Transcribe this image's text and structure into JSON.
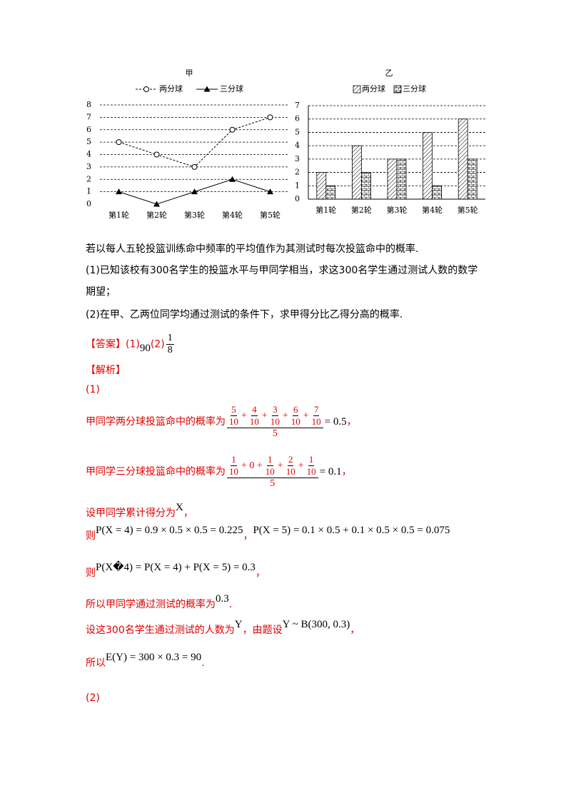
{
  "chart_data": [
    {
      "type": "line",
      "title": "甲",
      "categories": [
        "第1轮",
        "第2轮",
        "第3轮",
        "第4轮",
        "第5轮"
      ],
      "series": [
        {
          "name": "两分球",
          "color": "#000000",
          "marker": "circle",
          "dashed": true,
          "values": [
            5,
            4,
            3,
            6,
            7
          ]
        },
        {
          "name": "三分球",
          "color": "#000000",
          "marker": "triangle",
          "dashed": false,
          "values": [
            1,
            0,
            1,
            2,
            1
          ]
        }
      ],
      "ylim": [
        0,
        8
      ],
      "yticks": [
        0,
        1,
        2,
        3,
        4,
        5,
        6,
        7,
        8
      ],
      "grid": true
    },
    {
      "type": "bar",
      "title": "乙",
      "categories": [
        "第1轮",
        "第2轮",
        "第3轮",
        "第4轮",
        "第5轮"
      ],
      "series": [
        {
          "name": "两分球",
          "color": "#000000",
          "pattern": "hatch",
          "values": [
            2,
            4,
            3,
            5,
            6
          ]
        },
        {
          "name": "三分球",
          "color": "#000000",
          "pattern": "brick",
          "values": [
            1,
            2,
            3,
            1,
            3
          ]
        }
      ],
      "ylim": [
        0,
        7
      ],
      "yticks": [
        0,
        1,
        2,
        3,
        4,
        5,
        6,
        7
      ],
      "grid": true
    }
  ],
  "question": [
    "若以每人五轮投篮训练命中频率的平均值作为其测试时每次投篮命中的概率.",
    "(1)已知该校有300名学生的投篮水平与甲同学相当，求这300名学生通过测试人数的数学期望；",
    "(2)在甲、乙两位同学均通过测试的条件下，求甲得分比乙得分高的概率."
  ],
  "answer": {
    "label": "【答案】",
    "part1": "(1)",
    "value1": "90",
    "part2": "(2)",
    "num2": "1",
    "den2": "8"
  },
  "analysis": {
    "label": "【解析】",
    "part1": "(1)",
    "line1": {
      "text": "甲同学两分球投篮命中的概率为",
      "num": [
        {
          "n": "5",
          "d": "10"
        },
        "+",
        {
          "n": "4",
          "d": "10"
        },
        "+",
        {
          "n": "3",
          "d": "10"
        },
        "+",
        {
          "n": "6",
          "d": "10"
        },
        "+",
        {
          "n": "7",
          "d": "10"
        }
      ],
      "den": "5",
      "result": "= 0.5",
      "end": "，"
    },
    "line2": {
      "text": "甲同学三分球投篮命中的概率为",
      "num": [
        {
          "n": "1",
          "d": "10"
        },
        "+ 0 +",
        {
          "n": "1",
          "d": "10"
        },
        "+",
        {
          "n": "2",
          "d": "10"
        },
        "+",
        {
          "n": "1",
          "d": "10"
        }
      ],
      "den": "5",
      "result": "= 0.1",
      "end": "，"
    },
    "line3": [
      "设甲同学累计得分为",
      "X",
      "，"
    ],
    "line4": [
      "则",
      "P(X = 4) = 0.9 × 0.5 × 0.5 = 0.225",
      "，",
      "P(X = 5) = 0.1 × 0.5 + 0.1 × 0.5 × 0.5 = 0.075"
    ],
    "line5": [
      "则",
      "P(X�4) = P(X = 4) + P(X = 5) = 0.3",
      "，"
    ],
    "line6": [
      "所以甲同学通过测试的概率为",
      "0.3",
      "."
    ],
    "line7": [
      "设这300名学生通过测试的人数为",
      "Y",
      "，由题设",
      "Y ~ B(300, 0.3)",
      "，"
    ],
    "line8": [
      "所以",
      "E(Y) = 300 × 0.3 = 90",
      "."
    ],
    "part2": "(2)"
  }
}
